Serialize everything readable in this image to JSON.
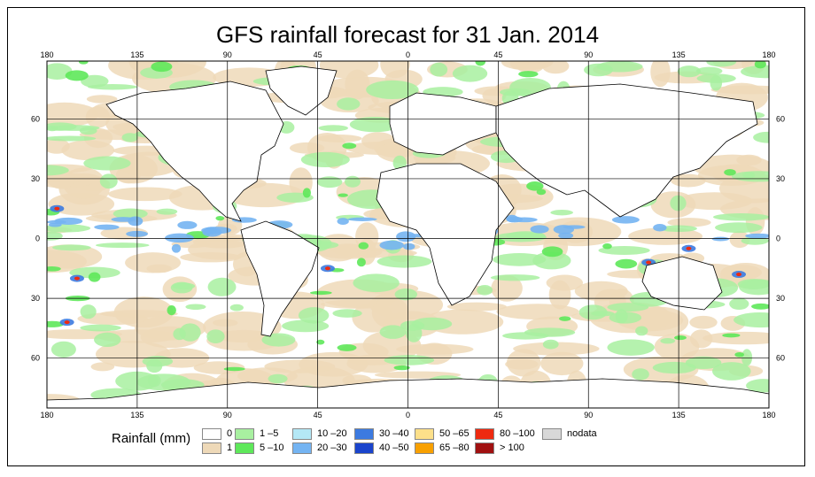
{
  "title": "GFS rainfall forecast for 31 Jan. 2014",
  "axes": {
    "lon_labels": [
      "180",
      "135",
      "90",
      "45",
      "0",
      "45",
      "90",
      "135",
      "180"
    ],
    "lat_labels": [
      "60",
      "30",
      "0",
      "30",
      "60"
    ]
  },
  "legend": {
    "title": "Rainfall (mm)",
    "items": [
      {
        "label": "0",
        "color": "#ffffff"
      },
      {
        "label": "1",
        "color": "#eed9b8"
      },
      {
        "label": "1 –5",
        "color": "#a8f0a0"
      },
      {
        "label": "5 –10",
        "color": "#5ee85a"
      },
      {
        "label": "10 –20",
        "color": "#b4e8f6"
      },
      {
        "label": "20 –30",
        "color": "#74b4f2"
      },
      {
        "label": "30 –40",
        "color": "#3c7ae0"
      },
      {
        "label": "40 –50",
        "color": "#1a44cc"
      },
      {
        "label": "50 –65",
        "color": "#fde08a"
      },
      {
        "label": "65 –80",
        "color": "#f8a000"
      },
      {
        "label": "80 –100",
        "color": "#ee2a10"
      },
      {
        "label": "> 100",
        "color": "#a01010"
      },
      {
        "label": "nodata",
        "color": "#d8d8d8"
      }
    ]
  },
  "colors": {
    "ocean_base": "#ffffff",
    "land_outline": "#000000",
    "grid": "#000000"
  }
}
